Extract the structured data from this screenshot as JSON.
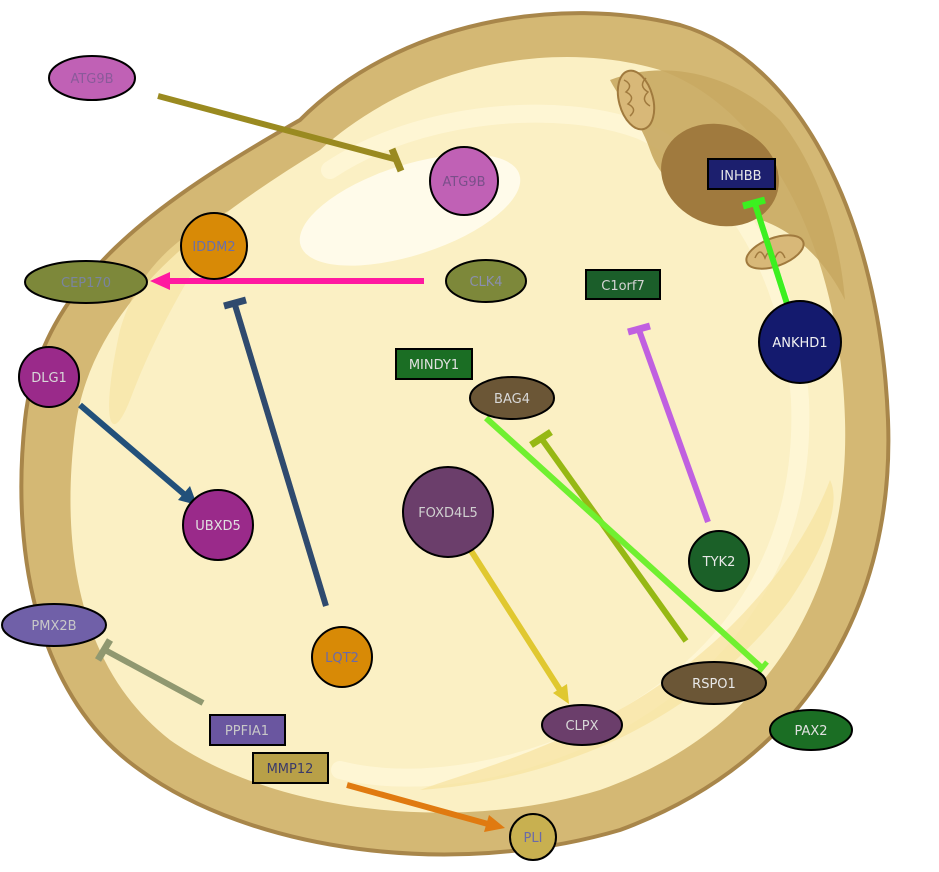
{
  "nodes": {
    "ATG9B": {
      "label": "ATG9B",
      "fill": "#c061b5",
      "text": "#8a5a9a"
    },
    "ATG9B_2": {
      "label": "ATG9B",
      "fill": "#c061b5",
      "text": "#7a4f8a"
    },
    "IDDM2": {
      "label": "IDDM2",
      "fill": "#d88a06",
      "text": "#6b6fa8"
    },
    "CEP170": {
      "label": "CEP170",
      "fill": "#7d883a",
      "text": "#7a84a0"
    },
    "CLK4": {
      "label": "CLK4",
      "fill": "#7d883a",
      "text": "#8a8fb0"
    },
    "C1orf7": {
      "label": "C1orf7",
      "fill": "#1b5e2a",
      "text": "#d4d4d4"
    },
    "INHBB": {
      "label": "INHBB",
      "fill": "#1c1f6e",
      "text": "#e8e8e8"
    },
    "ANKHD1": {
      "label": "ANKHD1",
      "fill": "#141a6e",
      "text": "#f2f2f2"
    },
    "MINDY1": {
      "label": "MINDY1",
      "fill": "#1b6e24",
      "text": "#e0e0e0"
    },
    "BAG4": {
      "label": "BAG4",
      "fill": "#6b5636",
      "text": "#d8d8d8"
    },
    "DLG1": {
      "label": "DLG1",
      "fill": "#9a2a8a",
      "text": "#d8d8d8"
    },
    "UBXD5": {
      "label": "UBXD5",
      "fill": "#9a2a8a",
      "text": "#e0e0e0"
    },
    "FOXD4L5": {
      "label": "FOXD4L5",
      "fill": "#6b3e6b",
      "text": "#d0d0d0"
    },
    "TYK2": {
      "label": "TYK2",
      "fill": "#1b6028",
      "text": "#e8e8e8"
    },
    "PMX2B": {
      "label": "PMX2B",
      "fill": "#7060a8",
      "text": "#c8c8c8"
    },
    "LQT2": {
      "label": "LQT2",
      "fill": "#d88a06",
      "text": "#6a6aa8"
    },
    "PPFIA1": {
      "label": "PPFIA1",
      "fill": "#6a56a0",
      "text": "#c8c8c8"
    },
    "MMP12": {
      "label": "MMP12",
      "fill": "#b8a048",
      "text": "#3a3a6a"
    },
    "RSPO1": {
      "label": "RSPO1",
      "fill": "#6b5636",
      "text": "#e8e8e8"
    },
    "CLPX": {
      "label": "CLPX",
      "fill": "#6b3e6b",
      "text": "#d8d8d8"
    },
    "PAX2": {
      "label": "PAX2",
      "fill": "#1b6e24",
      "text": "#e0e0e0"
    },
    "PLI": {
      "label": "PLI",
      "fill": "#c8b050",
      "text": "#6a6aa8"
    }
  },
  "edges": [
    {
      "from": "ATG9B",
      "to": "ATG9B_2",
      "type": "inhibition",
      "color": "#9a8a20"
    },
    {
      "from": "CLK4",
      "to": "CEP170",
      "type": "activation",
      "color": "#ff1aa0"
    },
    {
      "from": "LQT2",
      "to": "IDDM2",
      "type": "inhibition",
      "color": "#2f4a6e"
    },
    {
      "from": "DLG1",
      "to": "UBXD5",
      "type": "activation",
      "color": "#22507a"
    },
    {
      "from": "ANKHD1",
      "to": "INHBB",
      "type": "inhibition",
      "color": "#3cf020"
    },
    {
      "from": "TYK2",
      "to": "C1orf7",
      "type": "inhibition",
      "color": "#c060e0"
    },
    {
      "from": "RSPO1",
      "to": "BAG4",
      "type": "inhibition",
      "color": "#96b814"
    },
    {
      "from": "BAG4",
      "to": "RSPO1",
      "type": "inhibition",
      "color": "#70f030"
    },
    {
      "from": "FOXD4L5",
      "to": "CLPX",
      "type": "activation",
      "color": "#e0c830"
    },
    {
      "from": "PPFIA1",
      "to": "PMX2B",
      "type": "inhibition",
      "color": "#909870"
    },
    {
      "from": "MMP12",
      "to": "PLI",
      "type": "activation",
      "color": "#e07a10"
    }
  ]
}
